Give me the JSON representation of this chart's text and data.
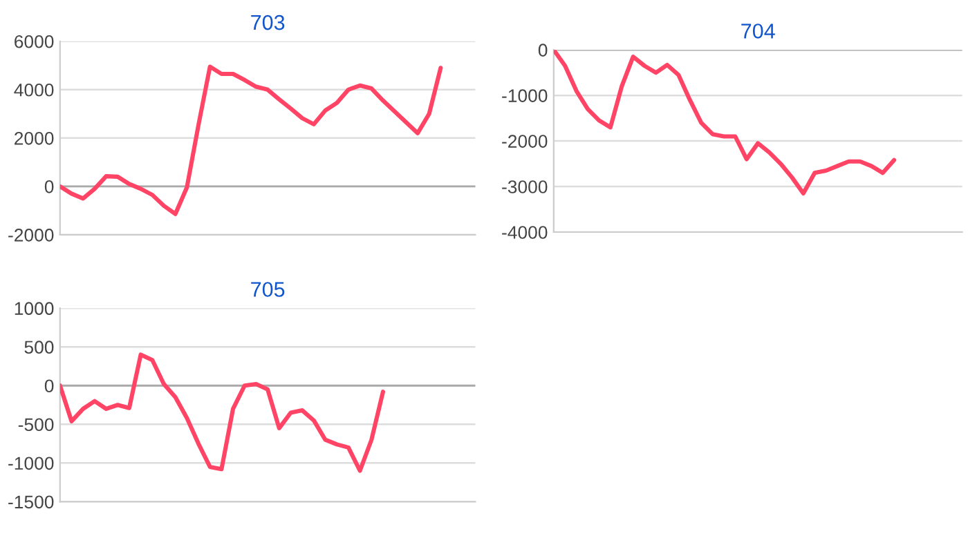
{
  "chart_data": [
    {
      "type": "line",
      "title": "703",
      "categories": [
        null,
        null,
        null,
        null,
        null,
        null,
        null,
        null,
        null,
        null,
        null,
        null,
        null,
        null,
        null,
        null,
        null,
        null,
        null,
        null,
        null,
        null,
        null,
        null,
        null,
        null,
        null,
        null,
        null,
        null,
        null,
        null,
        null,
        null,
        null,
        null,
        null
      ],
      "series": [
        {
          "color": "#ff4466",
          "values": [
            0,
            -300,
            -500,
            -100,
            420,
            400,
            100,
            -100,
            -350,
            -800,
            -1140,
            -40,
            2530,
            4950,
            4650,
            4650,
            4400,
            4120,
            4000,
            3600,
            3220,
            2820,
            2570,
            3140,
            3450,
            4000,
            4170,
            4050,
            3550,
            3100,
            2650,
            2200,
            3000,
            4900,
            null,
            null,
            null
          ]
        }
      ],
      "ylim": [
        -2000,
        6000
      ],
      "yticks": [
        -2000,
        0,
        2000,
        4000,
        6000
      ],
      "tick_labels": "y",
      "grid": "y",
      "legend": false,
      "ref_lines": [
        {
          "axis": "y",
          "value": 0,
          "color": "#aaaaaa"
        }
      ]
    },
    {
      "type": "line",
      "title": "704",
      "categories": [
        null,
        null,
        null,
        null,
        null,
        null,
        null,
        null,
        null,
        null,
        null,
        null,
        null,
        null,
        null,
        null,
        null,
        null,
        null,
        null,
        null,
        null,
        null,
        null,
        null,
        null,
        null,
        null,
        null,
        null,
        null,
        null,
        null,
        null,
        null,
        null,
        null
      ],
      "series": [
        {
          "color": "#ff4466",
          "values": [
            0,
            -350,
            -900,
            -1300,
            -1550,
            -1700,
            -800,
            -150,
            -350,
            -500,
            -330,
            -550,
            -1100,
            -1600,
            -1850,
            -1900,
            -1900,
            -2400,
            -2050,
            -2250,
            -2500,
            -2800,
            -3150,
            -2700,
            -2650,
            -2550,
            -2450,
            -2450,
            -2550,
            -2700,
            -2420,
            null,
            null,
            null,
            null,
            null,
            null
          ]
        }
      ],
      "ylim": [
        -4000,
        0
      ],
      "yticks": [
        -4000,
        -3000,
        -2000,
        -1000,
        0
      ],
      "tick_labels": "y",
      "grid": "y",
      "legend": false,
      "ref_lines": [
        {
          "axis": "y",
          "value": 0,
          "color": "#aaaaaa"
        }
      ]
    },
    {
      "type": "line",
      "title": "705",
      "categories": [
        null,
        null,
        null,
        null,
        null,
        null,
        null,
        null,
        null,
        null,
        null,
        null,
        null,
        null,
        null,
        null,
        null,
        null,
        null,
        null,
        null,
        null,
        null,
        null,
        null,
        null,
        null,
        null,
        null,
        null,
        null,
        null,
        null,
        null,
        null,
        null,
        null
      ],
      "series": [
        {
          "color": "#ff4466",
          "values": [
            0,
            -460,
            -300,
            -200,
            -300,
            -250,
            -290,
            400,
            330,
            20,
            -150,
            -420,
            -750,
            -1050,
            -1080,
            -300,
            0,
            20,
            -50,
            -550,
            -350,
            -320,
            -450,
            -700,
            -760,
            -800,
            -1100,
            -700,
            -80,
            null,
            null,
            null,
            null,
            null,
            null,
            null,
            null
          ]
        }
      ],
      "ylim": [
        -1500,
        1000
      ],
      "yticks": [
        -1500,
        -1000,
        -500,
        0,
        500,
        1000
      ],
      "tick_labels": "y",
      "grid": "y",
      "legend": false,
      "ref_lines": [
        {
          "axis": "y",
          "value": 0,
          "color": "#aaaaaa"
        }
      ]
    }
  ]
}
